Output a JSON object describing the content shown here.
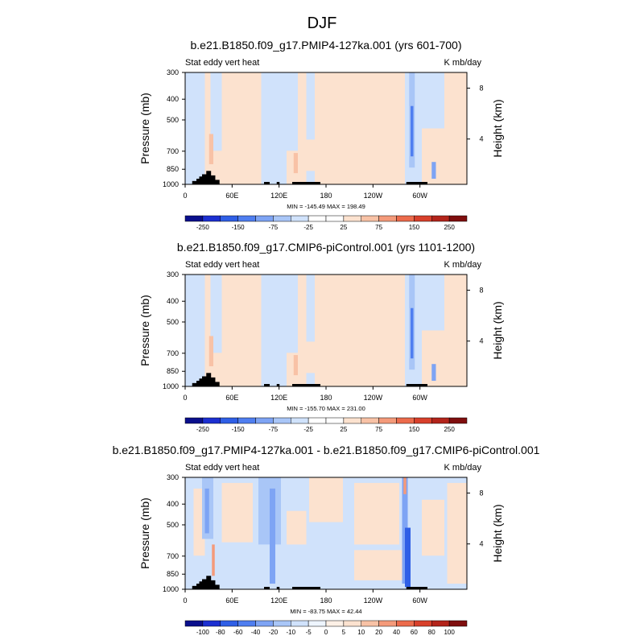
{
  "figure_title": "DJF",
  "chart_data": [
    {
      "type": "heatmap",
      "title": "b.e21.B1850.f09_g17.PMIP4-127ka.001 (yrs 601-700)",
      "left_label": "Stat eddy vert heat",
      "right_label": "K mb/day",
      "ylabel": "Pressure (mb)",
      "y2label": "Height (km)",
      "yticks": [
        "300",
        "400",
        "500",
        "700",
        "850",
        "1000"
      ],
      "y2ticks": [
        "8",
        "4"
      ],
      "xticks": [
        "0",
        "60E",
        "120E",
        "180",
        "120W",
        "60W"
      ],
      "minmax": "MIN = -145.49   MAX = 198.49",
      "colorbar_labels": [
        "-250",
        "-150",
        "-75",
        "-25",
        "25",
        "75",
        "150",
        "250"
      ],
      "colorbar_colors": [
        "#0a0f8c",
        "#1c2fd1",
        "#2f5fe6",
        "#4f7ef0",
        "#7ea4f4",
        "#a9c6f7",
        "#d0e2fb",
        "#ffffff",
        "#ffffff",
        "#fce2cf",
        "#f8c2a6",
        "#f49a7a",
        "#ec6b4c",
        "#d8402b",
        "#b3241b",
        "#7f0e0e"
      ],
      "grid": false
    },
    {
      "type": "heatmap",
      "title": "b.e21.B1850.f09_g17.CMIP6-piControl.001 (yrs 1101-1200)",
      "left_label": "Stat eddy vert heat",
      "right_label": "K mb/day",
      "ylabel": "Pressure (mb)",
      "y2label": "Height (km)",
      "yticks": [
        "300",
        "400",
        "500",
        "700",
        "850",
        "1000"
      ],
      "y2ticks": [
        "8",
        "4"
      ],
      "xticks": [
        "0",
        "60E",
        "120E",
        "180",
        "120W",
        "60W"
      ],
      "minmax": "MIN = -155.70   MAX = 231.00",
      "colorbar_labels": [
        "-250",
        "-150",
        "-75",
        "-25",
        "25",
        "75",
        "150",
        "250"
      ],
      "colorbar_colors": [
        "#0a0f8c",
        "#1c2fd1",
        "#2f5fe6",
        "#4f7ef0",
        "#7ea4f4",
        "#a9c6f7",
        "#d0e2fb",
        "#ffffff",
        "#ffffff",
        "#fce2cf",
        "#f8c2a6",
        "#f49a7a",
        "#ec6b4c",
        "#d8402b",
        "#b3241b",
        "#7f0e0e"
      ],
      "grid": false
    },
    {
      "type": "heatmap",
      "title": "b.e21.B1850.f09_g17.PMIP4-127ka.001 - b.e21.B1850.f09_g17.CMIP6-piControl.001",
      "left_label": "Stat eddy vert heat",
      "right_label": "K mb/day",
      "ylabel": "Pressure (mb)",
      "y2label": "Height (km)",
      "yticks": [
        "300",
        "400",
        "500",
        "700",
        "850",
        "1000"
      ],
      "y2ticks": [
        "8",
        "4"
      ],
      "xticks": [
        "0",
        "60E",
        "120E",
        "180",
        "120W",
        "60W"
      ],
      "minmax": "MIN = -83.75   MAX = 42.44",
      "colorbar_labels": [
        "-100",
        "-80",
        "-60",
        "-40",
        "-20",
        "-10",
        "-5",
        "0",
        "5",
        "10",
        "20",
        "40",
        "60",
        "80",
        "100"
      ],
      "colorbar_colors": [
        "#0a0f8c",
        "#1c2fd1",
        "#2f5fe6",
        "#4f7ef0",
        "#7ea4f4",
        "#a9c6f7",
        "#d0e2fb",
        "#eef5ff",
        "#fdf0e6",
        "#fce2cf",
        "#f8c2a6",
        "#f49a7a",
        "#ec6b4c",
        "#d8402b",
        "#b3241b",
        "#7f0e0e"
      ],
      "grid": false
    }
  ]
}
